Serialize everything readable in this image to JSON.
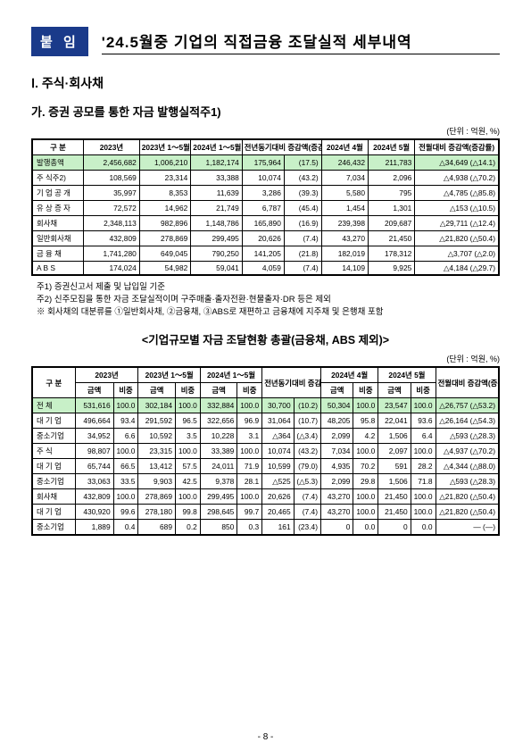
{
  "badge": "붙 임",
  "title": "'24.5월중 기업의 직접금융 조달실적 세부내역",
  "section1": "Ⅰ. 주식·회사채",
  "sub1": "가. 증권 공모를 통한 자금 발행실적주1)",
  "unit": "(단위 : 억원, %)",
  "table1": {
    "head": {
      "gubun": "구  분",
      "y2023": "2023년",
      "y2023_1_5": "2023년\n1～5월",
      "y2024_1_5": "2024년\n1～5월",
      "yoy": "전년동기대비\n증감액(증감률)",
      "y2024_4": "2024년\n4월",
      "y2024_5": "2024년\n5월",
      "mom": "전월대비\n증감액(증감률)"
    },
    "rows": [
      {
        "lbl": "발행총액",
        "hl": true,
        "v": [
          "2,456,682",
          "1,006,210",
          "1,182,174",
          "175,964",
          "(17.5)",
          "246,432",
          "211,783",
          "△34,649 (△14.1)"
        ]
      },
      {
        "lbl": "주    식주2)",
        "v": [
          "108,569",
          "23,314",
          "33,388",
          "10,074",
          "(43.2)",
          "7,034",
          "2,096",
          "△4,938 (△70.2)"
        ]
      },
      {
        "lbl": "  기 업 공 개",
        "v": [
          "35,997",
          "8,353",
          "11,639",
          "3,286",
          "(39.3)",
          "5,580",
          "795",
          "△4,785 (△85.8)"
        ]
      },
      {
        "lbl": "  유 상 증 자",
        "v": [
          "72,572",
          "14,962",
          "21,749",
          "6,787",
          "(45.4)",
          "1,454",
          "1,301",
          "△153 (△10.5)"
        ]
      },
      {
        "lbl": "회사채",
        "v": [
          "2,348,113",
          "982,896",
          "1,148,786",
          "165,890",
          "(16.9)",
          "239,398",
          "209,687",
          "△29,711 (△12.4)"
        ]
      },
      {
        "lbl": "  일반회사채",
        "v": [
          "432,809",
          "278,869",
          "299,495",
          "20,626",
          "(7.4)",
          "43,270",
          "21,450",
          "△21,820 (△50.4)"
        ]
      },
      {
        "lbl": "  금   융   채",
        "v": [
          "1,741,280",
          "649,045",
          "790,250",
          "141,205",
          "(21.8)",
          "182,019",
          "178,312",
          "△3,707 (△2.0)"
        ]
      },
      {
        "lbl": "  A     B     S",
        "v": [
          "174,024",
          "54,982",
          "59,041",
          "4,059",
          "(7.4)",
          "14,109",
          "9,925",
          "△4,184 (△29.7)"
        ]
      }
    ]
  },
  "footnotes": [
    "주1) 증권신고서 제출 및 납입일 기준",
    "주2) 신주모집을 통한 자금 조달실적이며 구주매출·출자전환·현물출자·DR 등은 제외",
    "※ 회사채의 대분류를 ①일반회사채, ②금융채, ③ABS로 재편하고 금융채에 지주채 및 은행채 포함"
  ],
  "midtitle": "<기업규모별 자금 조달현황 총괄(금융채, ABS 제외)>",
  "table2": {
    "head": {
      "gubun": "구 분",
      "amt": "금액",
      "pct": "비중",
      "y2023": "2023년",
      "y2023_1_5": "2023년\n1～5월",
      "y2024_1_5": "2024년\n1～5월",
      "yoy": "전년동기대비\n증감액(증감률)",
      "y2024_4": "2024년\n4월",
      "y2024_5": "2024년\n5월",
      "mom": "전월대비\n증감액(증감률)"
    },
    "rows": [
      {
        "lbl": "전 체",
        "hl": true,
        "v": [
          "531,616",
          "100.0",
          "302,184",
          "100.0",
          "332,884",
          "100.0",
          "30,700",
          "(10.2)",
          "50,304",
          "100.0",
          "23,547",
          "100.0",
          "△26,757 (△53.2)"
        ]
      },
      {
        "lbl": "  대 기 업",
        "v": [
          "496,664",
          "93.4",
          "291,592",
          "96.5",
          "322,656",
          "96.9",
          "31,064",
          "(10.7)",
          "48,205",
          "95.8",
          "22,041",
          "93.6",
          "△26,164 (△54.3)"
        ]
      },
      {
        "lbl": "  중소기업",
        "v": [
          "34,952",
          "6.6",
          "10,592",
          "3.5",
          "10,228",
          "3.1",
          "△364",
          "(△3.4)",
          "2,099",
          "4.2",
          "1,506",
          "6.4",
          "△593 (△28.3)"
        ]
      },
      {
        "lbl": "주  식",
        "v": [
          "98,807",
          "100.0",
          "23,315",
          "100.0",
          "33,389",
          "100.0",
          "10,074",
          "(43.2)",
          "7,034",
          "100.0",
          "2,097",
          "100.0",
          "△4,937 (△70.2)"
        ]
      },
      {
        "lbl": "  대 기 업",
        "v": [
          "65,744",
          "66.5",
          "13,412",
          "57.5",
          "24,011",
          "71.9",
          "10,599",
          "(79.0)",
          "4,935",
          "70.2",
          "591",
          "28.2",
          "△4,344 (△88.0)"
        ]
      },
      {
        "lbl": "  중소기업",
        "v": [
          "33,063",
          "33.5",
          "9,903",
          "42.5",
          "9,378",
          "28.1",
          "△525",
          "(△5.3)",
          "2,099",
          "29.8",
          "1,506",
          "71.8",
          "△593 (△28.3)"
        ]
      },
      {
        "lbl": "회사채",
        "v": [
          "432,809",
          "100.0",
          "278,869",
          "100.0",
          "299,495",
          "100.0",
          "20,626",
          "(7.4)",
          "43,270",
          "100.0",
          "21,450",
          "100.0",
          "△21,820 (△50.4)"
        ]
      },
      {
        "lbl": "  대 기 업",
        "v": [
          "430,920",
          "99.6",
          "278,180",
          "99.8",
          "298,645",
          "99.7",
          "20,465",
          "(7.4)",
          "43,270",
          "100.0",
          "21,450",
          "100.0",
          "△21,820 (△50.4)"
        ]
      },
      {
        "lbl": "  중소기업",
        "v": [
          "1,889",
          "0.4",
          "689",
          "0.2",
          "850",
          "0.3",
          "161",
          "(23.4)",
          "0",
          "0.0",
          "0",
          "0.0",
          "— (—)"
        ]
      }
    ]
  },
  "pagenum": "- 8 -"
}
